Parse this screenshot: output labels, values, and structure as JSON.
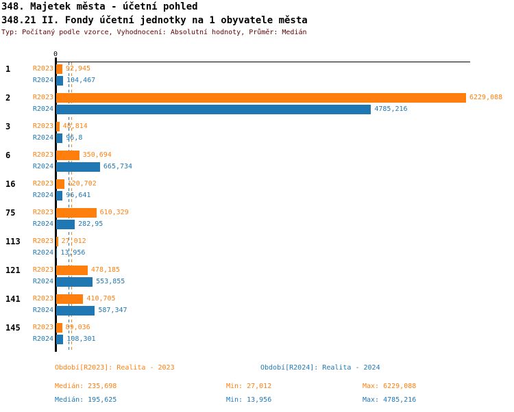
{
  "header": {
    "title": "348. Majetek města - účetní pohled",
    "subtitle": "348.21 II. Fondy účetní jednotky na 1 obyvatele města",
    "meta": "Typ: Počítaný podle vzorce, Vyhodnocení: Absolutní hodnoty, Průměr: Medián"
  },
  "colors": {
    "r2023": "#FF7F0E",
    "r2024": "#1F77B4",
    "meta_text": "#600000",
    "axis": "#000000",
    "background": "#FFFFFF"
  },
  "chart_data": {
    "type": "bar",
    "orientation": "horizontal",
    "grid": false,
    "axis_zero_label": "0",
    "xlim": [
      0,
      6229.088
    ],
    "categories": [
      "1",
      "2",
      "3",
      "6",
      "16",
      "75",
      "113",
      "121",
      "141",
      "145"
    ],
    "series": [
      {
        "name": "R2023",
        "color": "#FF7F0E",
        "values": [
          92.945,
          6229.088,
          48.814,
          350.694,
          120.702,
          610.329,
          27.012,
          478.185,
          410.705,
          89.036
        ],
        "value_labels": [
          "92,945",
          "6229,088",
          "48,814",
          "350,694",
          "120,702",
          "610,329",
          "27,012",
          "478,185",
          "410,705",
          "89,036"
        ],
        "median": 235.698
      },
      {
        "name": "R2024",
        "color": "#1F77B4",
        "values": [
          104.467,
          4785.216,
          96.8,
          665.734,
          96.641,
          282.95,
          13.956,
          553.855,
          587.347,
          108.301
        ],
        "value_labels": [
          "104,467",
          "4785,216",
          "96,8",
          "665,734",
          "96,641",
          "282,95",
          "13,956",
          "553,855",
          "587,347",
          "108,301"
        ],
        "median": 195.625
      }
    ]
  },
  "footer": {
    "period_r2023": "Období[R2023]: Realita - 2023",
    "period_r2024": "Období[R2024]: Realita - 2024",
    "stats_r2023": {
      "median": "Medián: 235,698",
      "min": "Min: 27,012",
      "max": "Max: 6229,088"
    },
    "stats_r2024": {
      "median": "Medián: 195,625",
      "min": "Min: 13,956",
      "max": "Max: 4785,216"
    }
  }
}
